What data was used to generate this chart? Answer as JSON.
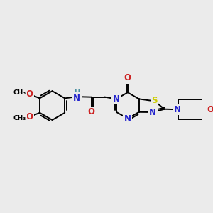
{
  "bg_color": "#ebebeb",
  "bond_color": "#000000",
  "bond_width": 1.4,
  "atom_colors": {
    "C": "#000000",
    "N": "#2222cc",
    "O": "#cc2222",
    "S": "#cccc00",
    "H": "#4a8fa0"
  },
  "font_size": 8.5
}
